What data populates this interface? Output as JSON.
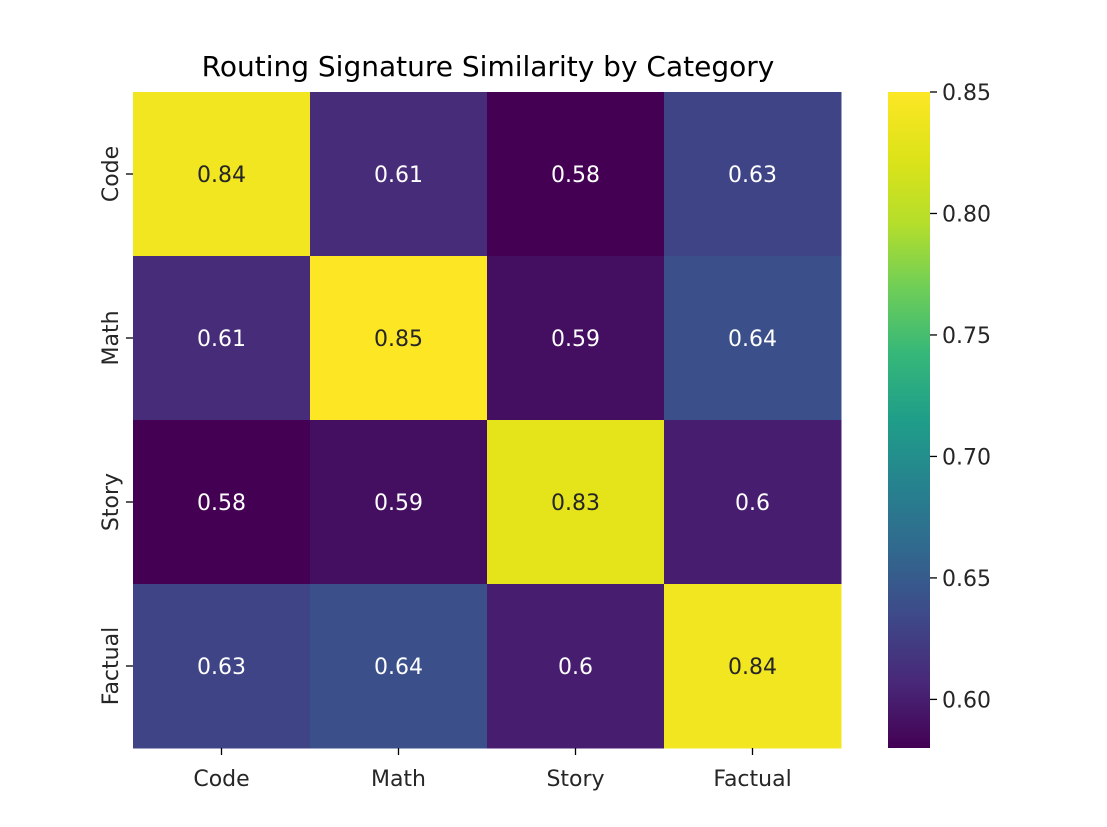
{
  "chart_data": {
    "type": "heatmap",
    "title": "Routing Signature Similarity by Category",
    "xlabel": "",
    "ylabel": "",
    "x_categories": [
      "Code",
      "Math",
      "Story",
      "Factual"
    ],
    "y_categories": [
      "Code",
      "Math",
      "Story",
      "Factual"
    ],
    "values": [
      [
        0.84,
        0.61,
        0.58,
        0.63
      ],
      [
        0.61,
        0.85,
        0.59,
        0.64
      ],
      [
        0.58,
        0.59,
        0.83,
        0.6
      ],
      [
        0.63,
        0.64,
        0.6,
        0.84
      ]
    ],
    "cell_labels": [
      [
        "0.84",
        "0.61",
        "0.58",
        "0.63"
      ],
      [
        "0.61",
        "0.85",
        "0.59",
        "0.64"
      ],
      [
        "0.58",
        "0.59",
        "0.83",
        "0.6"
      ],
      [
        "0.63",
        "0.64",
        "0.6",
        "0.84"
      ]
    ],
    "colormap": "viridis",
    "color_range": [
      0.58,
      0.85
    ],
    "colorbar_ticks": [
      "0.60",
      "0.65",
      "0.70",
      "0.75",
      "0.80",
      "0.85"
    ],
    "colorbar_tick_values": [
      0.6,
      0.65,
      0.7,
      0.75,
      0.8,
      0.85
    ],
    "grid": false,
    "legend": "colorbar-right"
  }
}
